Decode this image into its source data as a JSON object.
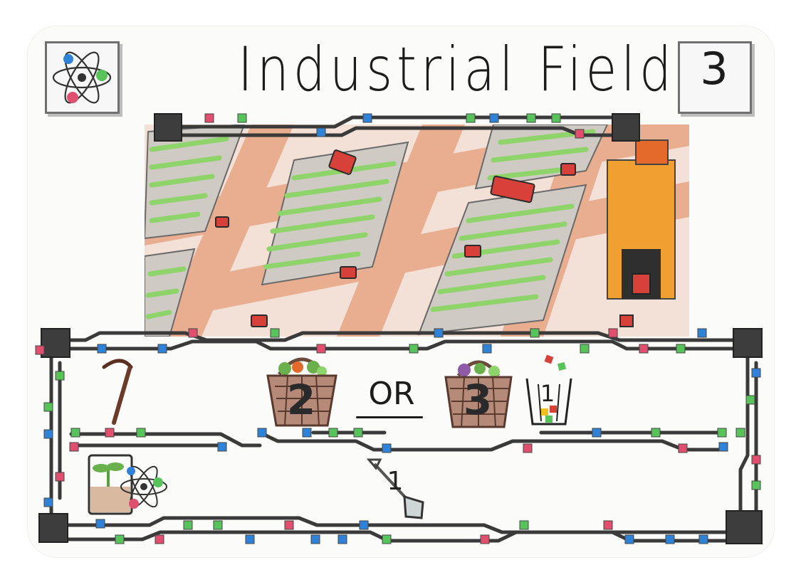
{
  "card": {
    "title": "Industrial Field",
    "cost": "3",
    "type_icon": "atom-icon"
  },
  "illustration": {
    "description_icon": "industrial-field-illustration"
  },
  "effects": {
    "requirement_icon": "sickle-icon",
    "option_a": {
      "icon": "harvest-basket-icon",
      "value": "2"
    },
    "separator": "OR",
    "option_b": {
      "icon": "harvest-basket-icon",
      "value": "3"
    },
    "option_b_cost": {
      "icon": "waste-bin-icon",
      "value": "1"
    },
    "bottom_effect": {
      "icon": "shovel-icon",
      "value": "1"
    },
    "tag_icon": "sprout-atom-tag-icon"
  },
  "colors": {
    "track": "#3a3a3a",
    "node_red": "#e0506e",
    "node_green": "#57c35a",
    "node_blue": "#2f82d8",
    "field_green": "#8fd46a",
    "road": "#e7a98a",
    "tractor_red": "#d8403a",
    "silo_orange": "#f0a030"
  }
}
